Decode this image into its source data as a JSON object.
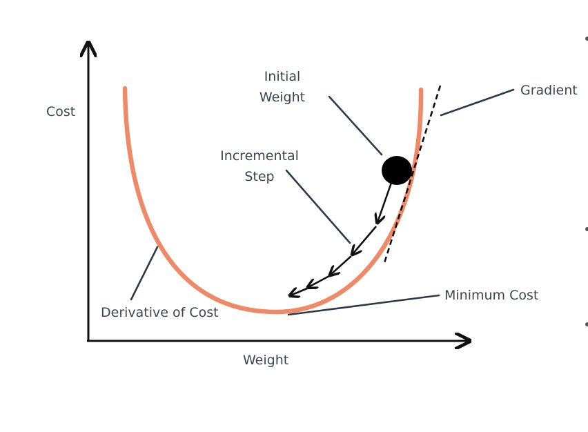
{
  "labels": {
    "y_axis": "Cost",
    "x_axis": "Weight",
    "initial_weight_line1": "Initial",
    "initial_weight_line2": "Weight",
    "incremental_step_line1": "Incremental",
    "incremental_step_line2": "Step",
    "gradient": "Gradient",
    "minimum_cost": "Minimum Cost",
    "derivative_of_cost": "Derivative of Cost"
  },
  "colors": {
    "curve": "#ee8a68",
    "axis": "#111111",
    "leader": "#2b3a48",
    "ball": "#000000",
    "text": "#3b4650"
  }
}
